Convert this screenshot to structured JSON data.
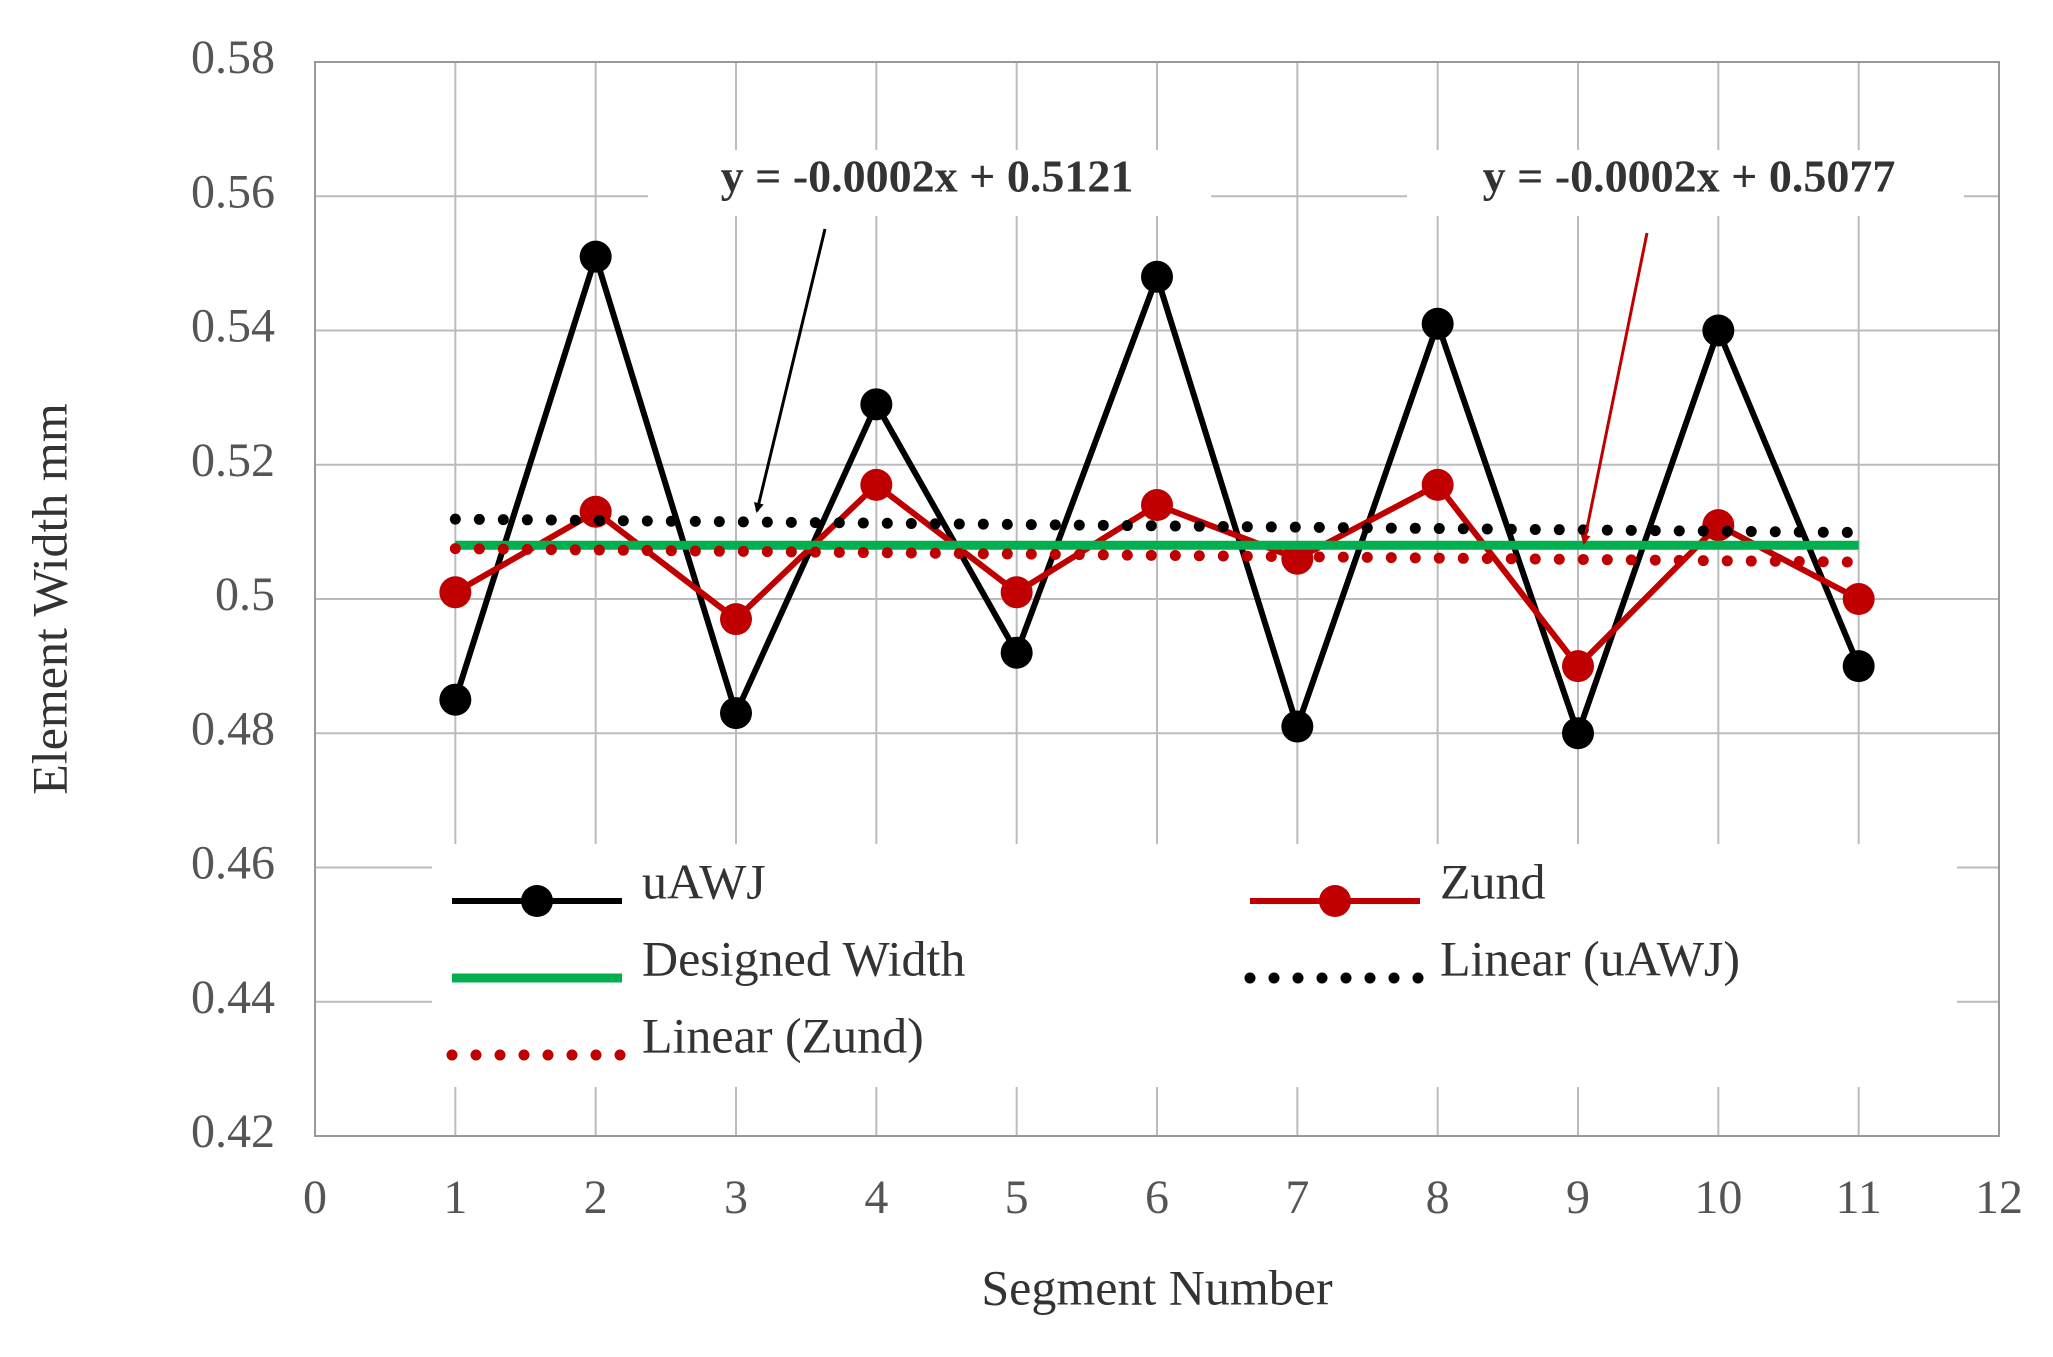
{
  "chart_data": {
    "type": "line",
    "xlabel": "Segment Number",
    "ylabel": "Element Width mm",
    "xlim": [
      0,
      12
    ],
    "xticks": [
      0,
      1,
      2,
      3,
      4,
      5,
      6,
      7,
      8,
      9,
      10,
      11,
      12
    ],
    "ylim": [
      0.42,
      0.58
    ],
    "yticks": [
      0.42,
      0.44,
      0.46,
      0.48,
      0.5,
      0.52,
      0.54,
      0.56,
      0.58
    ],
    "grid": true,
    "series": [
      {
        "name": "uAWJ",
        "color": "#000000",
        "style": "line-marker",
        "x": [
          1,
          2,
          3,
          4,
          5,
          6,
          7,
          8,
          9,
          10,
          11
        ],
        "values": [
          0.485,
          0.551,
          0.483,
          0.529,
          0.492,
          0.548,
          0.481,
          0.541,
          0.48,
          0.54,
          0.49
        ]
      },
      {
        "name": "Zund",
        "color": "#c00000",
        "style": "line-marker",
        "x": [
          1,
          2,
          3,
          4,
          5,
          6,
          7,
          8,
          9,
          10,
          11
        ],
        "values": [
          0.501,
          0.513,
          0.497,
          0.517,
          0.501,
          0.514,
          0.506,
          0.517,
          0.49,
          0.511,
          0.5
        ]
      },
      {
        "name": "Designed Width",
        "color": "#00b050",
        "style": "line",
        "x": [
          1,
          11
        ],
        "values": [
          0.508,
          0.508
        ]
      },
      {
        "name": "Linear (uAWJ)",
        "color": "#000000",
        "style": "dotted",
        "x": [
          1,
          11
        ],
        "values": [
          0.5119,
          0.5099
        ]
      },
      {
        "name": "Linear (Zund)",
        "color": "#c00000",
        "style": "dotted",
        "x": [
          1,
          11
        ],
        "values": [
          0.5075,
          0.5055
        ]
      }
    ],
    "annotations": [
      {
        "text": "y = -0.0002x + 0.5121",
        "color": "#000000"
      },
      {
        "text": "y = -0.0002x + 0.5077",
        "color": "#c00000"
      }
    ]
  }
}
